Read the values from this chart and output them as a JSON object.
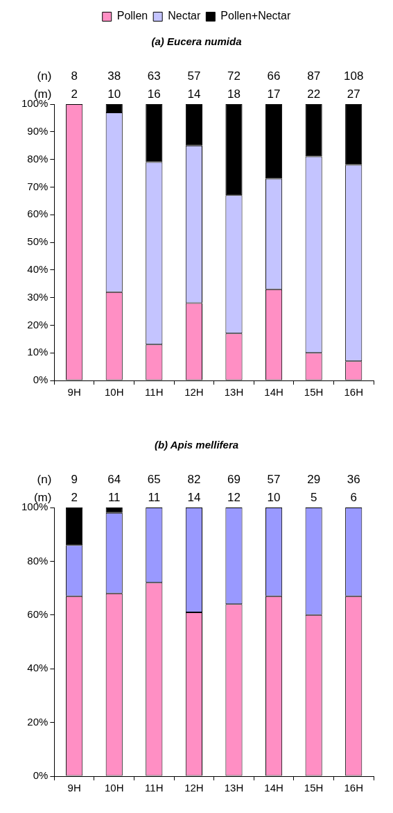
{
  "chart_data": [
    {
      "type": "bar",
      "title": "(a) Eucera numida",
      "stacked": true,
      "legend": "top",
      "categories": [
        "9H",
        "10H",
        "11H",
        "12H",
        "13H",
        "14H",
        "15H",
        "16H"
      ],
      "series": [
        {
          "name": "Pollen",
          "color": "#ff8fc4",
          "values": [
            100,
            32,
            13,
            28,
            17,
            33,
            10,
            7
          ]
        },
        {
          "name": "Nectar",
          "color": "#c4c4ff",
          "values": [
            0,
            65,
            66,
            57,
            50,
            40,
            71,
            71
          ]
        },
        {
          "name": "Pollen+Nectar",
          "color": "#000000",
          "values": [
            0,
            3,
            21,
            15,
            33,
            27,
            19,
            22
          ]
        }
      ],
      "ylim": [
        0,
        100
      ],
      "yticks": [
        {
          "value": 0,
          "label": "0%"
        },
        {
          "value": 10,
          "label": "10%"
        },
        {
          "value": 20,
          "label": "20%"
        },
        {
          "value": 30,
          "label": "30%"
        },
        {
          "value": 40,
          "label": "40%"
        },
        {
          "value": 50,
          "label": "50%"
        },
        {
          "value": 60,
          "label": "60%"
        },
        {
          "value": 70,
          "label": "70%"
        },
        {
          "value": 80,
          "label": "80%"
        },
        {
          "value": 90,
          "label": "90%"
        },
        {
          "value": 100,
          "label": "100%"
        }
      ],
      "annotations": [
        "(n)",
        "8",
        "38",
        "63",
        "57",
        "72",
        "66",
        "87",
        "108",
        "(m)",
        "2",
        "10",
        "16",
        "14",
        "18",
        "17",
        "22",
        "27"
      ]
    },
    {
      "type": "bar",
      "title": "(b) Apis mellifera",
      "stacked": true,
      "categories": [
        "9H",
        "10H",
        "11H",
        "12H",
        "13H",
        "14H",
        "15H",
        "16H"
      ],
      "series": [
        {
          "color": "#ff8fc4",
          "values": [
            67,
            68,
            72,
            61,
            64,
            67,
            60,
            67
          ]
        },
        {
          "color": "#9999ff",
          "values": [
            19,
            30,
            28,
            39,
            36,
            33,
            40,
            33
          ]
        },
        {
          "color": "#000000",
          "values": [
            14,
            2,
            0,
            0,
            0,
            0,
            0,
            0
          ]
        }
      ],
      "ylim": [
        0,
        100
      ],
      "yticks": [
        {
          "value": 0,
          "label": "0%"
        },
        {
          "value": 20,
          "label": "20%"
        },
        {
          "value": 40,
          "label": "40%"
        },
        {
          "value": 60,
          "label": "60%"
        },
        {
          "value": 80,
          "label": "80%"
        },
        {
          "value": 100,
          "label": "100%"
        }
      ],
      "annotations": [
        "(n)",
        "9",
        "64",
        "65",
        "82",
        "69",
        "57",
        "29",
        "36",
        "(m)",
        "2",
        "11",
        "11",
        "14",
        "12",
        "10",
        "5",
        "6"
      ]
    }
  ]
}
